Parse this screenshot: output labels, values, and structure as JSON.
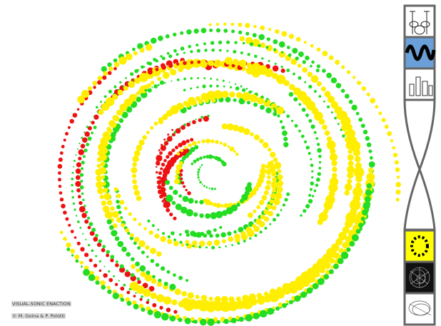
{
  "labels": {
    "title": "VISUAL-SONIC ENACTION",
    "credit": "© M. Goina & P. Polotti"
  }
}
